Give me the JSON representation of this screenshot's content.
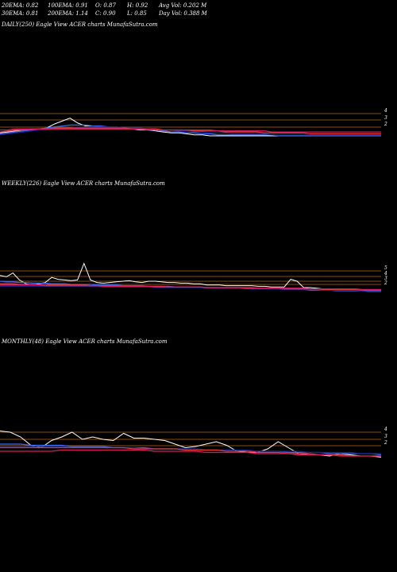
{
  "stats": {
    "row1": [
      "20EMA: 0.82",
      "100EMA: 0.91",
      "O: 0.87",
      "H: 0.92",
      "Avg Vol: 0.202  M"
    ],
    "row2": [
      "30EMA: 0.81",
      "200EMA: 1.14",
      "C: 0.90",
      "L: 0.85",
      "Day Vol: 0.388  M"
    ]
  },
  "colors": {
    "background": "#000000",
    "price": "#ffffff",
    "gridline": "#b5651d",
    "ema_blue": "#3a6cf0",
    "ema_navy": "#1a237e",
    "ema_red": "#e53935",
    "ema_magenta": "#d81b60"
  },
  "chart_data": [
    {
      "type": "line",
      "title": "DAILY(250) Eagle   View  ACER charts MunafaSutra.com",
      "y_tick_labels": [
        "4",
        "3",
        "2"
      ],
      "grid": true,
      "series": [
        {
          "color_key": "price",
          "values": [
            1.7,
            1.8,
            1.9,
            1.9,
            2.0,
            2.1,
            2.2,
            2.6,
            2.9,
            3.2,
            2.7,
            2.4,
            2.4,
            2.3,
            2.3,
            2.2,
            2.2,
            2.1,
            2.0,
            2.0,
            1.9,
            1.8,
            1.7,
            1.7,
            1.6,
            1.5,
            1.5,
            1.4,
            1.4,
            1.4,
            1.4,
            1.4,
            1.4,
            1.4,
            1.4,
            1.4,
            1.4,
            1.4,
            1.4,
            1.4,
            1.4,
            1.4,
            1.4,
            1.4,
            1.4,
            1.4,
            1.4,
            1.4,
            1.4,
            1.4
          ]
        },
        {
          "color_key": "ema_blue",
          "values": [
            1.6,
            1.7,
            1.8,
            1.9,
            2.0,
            2.1,
            2.2,
            2.3,
            2.4,
            2.5,
            2.5,
            2.5,
            2.4,
            2.4,
            2.3,
            2.3,
            2.2,
            2.2,
            2.1,
            2.0,
            2.0,
            1.9,
            1.8,
            1.8,
            1.7,
            1.7,
            1.6,
            1.6,
            1.5,
            1.5,
            1.5,
            1.5,
            1.5,
            1.5,
            1.5,
            1.5,
            1.4,
            1.4,
            1.4,
            1.4,
            1.4,
            1.4,
            1.4,
            1.4,
            1.4,
            1.4,
            1.4,
            1.4,
            1.4,
            1.4
          ]
        },
        {
          "color_key": "ema_navy",
          "values": [
            1.5,
            1.6,
            1.7,
            1.8,
            1.9,
            2.0,
            2.0,
            2.1,
            2.2,
            2.2,
            2.3,
            2.3,
            2.3,
            2.3,
            2.3,
            2.3,
            2.2,
            2.2,
            2.2,
            2.1,
            2.1,
            2.0,
            2.0,
            1.9,
            1.9,
            1.8,
            1.8,
            1.7,
            1.7,
            1.7,
            1.6,
            1.6,
            1.6,
            1.6,
            1.6,
            1.5,
            1.5,
            1.5,
            1.5,
            1.5,
            1.5,
            1.5,
            1.5,
            1.5,
            1.5,
            1.5,
            1.5,
            1.5,
            1.5,
            1.5
          ]
        },
        {
          "color_key": "ema_red",
          "values": [
            1.8,
            1.9,
            2.0,
            2.0,
            2.1,
            2.1,
            2.1,
            2.2,
            2.2,
            2.2,
            2.2,
            2.2,
            2.2,
            2.2,
            2.2,
            2.2,
            2.2,
            2.1,
            2.1,
            2.1,
            2.1,
            2.0,
            2.0,
            2.0,
            2.0,
            1.9,
            1.9,
            1.9,
            1.9,
            1.8,
            1.8,
            1.8,
            1.8,
            1.8,
            1.7,
            1.7,
            1.7,
            1.7,
            1.7,
            1.7,
            1.6,
            1.6,
            1.6,
            1.6,
            1.6,
            1.6,
            1.6,
            1.6,
            1.6,
            1.6
          ]
        },
        {
          "color_key": "ema_magenta",
          "values": [
            2.0,
            2.0,
            2.1,
            2.1,
            2.1,
            2.1,
            2.1,
            2.1,
            2.1,
            2.1,
            2.1,
            2.1,
            2.1,
            2.1,
            2.1,
            2.1,
            2.1,
            2.1,
            2.1,
            2.1,
            2.0,
            2.0,
            2.0,
            2.0,
            2.0,
            2.0,
            2.0,
            2.0,
            1.9,
            1.9,
            1.9,
            1.9,
            1.9,
            1.9,
            1.9,
            1.8,
            1.8,
            1.8,
            1.8,
            1.8,
            1.8,
            1.8,
            1.8,
            1.8,
            1.8,
            1.8,
            1.8,
            1.8,
            1.8,
            1.8
          ]
        }
      ]
    },
    {
      "type": "line",
      "title": "WEEKLY(226) Eagle   View  ACER charts MunafaSutra.com",
      "y_tick_labels": [
        "5",
        "4",
        "3",
        "2"
      ],
      "grid": true,
      "series": [
        {
          "color_key": "price",
          "values": [
            3.9,
            3.7,
            4.3,
            3.2,
            2.6,
            2.4,
            2.6,
            2.8,
            3.6,
            3.3,
            3.2,
            3.1,
            3.2,
            5.8,
            3.2,
            2.8,
            2.7,
            2.8,
            2.9,
            3.0,
            3.1,
            2.9,
            2.8,
            3.0,
            3.0,
            2.9,
            2.8,
            2.8,
            2.7,
            2.7,
            2.6,
            2.6,
            2.4,
            2.4,
            2.4,
            2.3,
            2.3,
            2.3,
            2.3,
            2.3,
            2.2,
            2.2,
            2.1,
            2.1,
            2.1,
            3.3,
            3.0,
            2.0,
            2.0,
            1.9,
            1.8,
            1.7,
            1.6,
            1.6,
            1.6,
            1.5,
            1.5,
            1.5,
            1.4,
            1.4
          ]
        },
        {
          "color_key": "ema_blue",
          "values": [
            3.0,
            2.9,
            2.9,
            2.8,
            2.8,
            2.7,
            2.7,
            2.7,
            2.6,
            2.6,
            2.6,
            2.5,
            2.5,
            2.5,
            2.5,
            2.4,
            2.4,
            2.4,
            2.4,
            2.3,
            2.3,
            2.3,
            2.3,
            2.2,
            2.2,
            2.2,
            2.2,
            2.1,
            2.1,
            2.1,
            2.1,
            2.0,
            2.0,
            2.0,
            2.0,
            1.9,
            1.9,
            1.9,
            1.9,
            1.8,
            1.8,
            1.8,
            1.8,
            1.8,
            1.7,
            1.7,
            1.7,
            1.7,
            1.6,
            1.6,
            1.6,
            1.6,
            1.5,
            1.5,
            1.5,
            1.5,
            1.5,
            1.4,
            1.4,
            1.4
          ]
        },
        {
          "color_key": "ema_navy",
          "values": [
            2.2,
            2.2,
            2.2,
            2.2,
            2.2,
            2.2,
            2.2,
            2.2,
            2.2,
            2.2,
            2.2,
            2.2,
            2.2,
            2.2,
            2.2,
            2.2,
            2.1,
            2.1,
            2.1,
            2.1,
            2.1,
            2.1,
            2.1,
            2.1,
            2.0,
            2.0,
            2.0,
            2.0,
            2.0,
            2.0,
            2.0,
            2.0,
            1.9,
            1.9,
            1.9,
            1.9,
            1.9,
            1.9,
            1.8,
            1.8,
            1.8,
            1.8,
            1.8,
            1.8,
            1.7,
            1.7,
            1.7,
            1.7,
            1.7,
            1.7,
            1.6,
            1.6,
            1.6,
            1.6,
            1.6,
            1.6,
            1.5,
            1.5,
            1.5,
            1.5
          ]
        },
        {
          "color_key": "ema_red",
          "values": [
            2.6,
            2.6,
            2.6,
            2.5,
            2.5,
            2.5,
            2.5,
            2.5,
            2.4,
            2.4,
            2.4,
            2.4,
            2.4,
            2.4,
            2.3,
            2.3,
            2.3,
            2.3,
            2.3,
            2.3,
            2.2,
            2.2,
            2.2,
            2.2,
            2.2,
            2.2,
            2.1,
            2.1,
            2.1,
            2.1,
            2.1,
            2.1,
            2.0,
            2.0,
            2.0,
            2.0,
            2.0,
            2.0,
            1.9,
            1.9,
            1.9,
            1.9,
            1.9,
            1.9,
            1.8,
            1.8,
            1.8,
            1.8,
            1.8,
            1.8,
            1.7,
            1.7,
            1.7,
            1.7,
            1.7,
            1.7,
            1.6,
            1.6,
            1.6,
            1.6
          ]
        },
        {
          "color_key": "ema_magenta",
          "values": [
            2.4,
            2.4,
            2.4,
            2.4,
            2.4,
            2.4,
            2.4,
            2.3,
            2.3,
            2.3,
            2.3,
            2.3,
            2.3,
            2.3,
            2.3,
            2.3,
            2.2,
            2.2,
            2.2,
            2.2,
            2.2,
            2.2,
            2.2,
            2.2,
            2.1,
            2.1,
            2.1,
            2.1,
            2.1,
            2.1,
            2.1,
            2.1,
            2.0,
            2.0,
            2.0,
            2.0,
            2.0,
            2.0,
            2.0,
            2.0,
            1.9,
            1.9,
            1.9,
            1.9,
            1.9,
            1.9,
            1.9,
            1.9,
            1.8,
            1.8,
            1.8,
            1.8,
            1.8,
            1.8,
            1.8,
            1.8,
            1.7,
            1.7,
            1.7,
            1.7
          ]
        }
      ]
    },
    {
      "type": "line",
      "title": "MONTHLY(48) Eagle   View  ACER charts MunafaSutra.com",
      "y_tick_labels": [
        "4",
        "3",
        "2"
      ],
      "grid": true,
      "series": [
        {
          "color_key": "price",
          "values": [
            3.7,
            3.6,
            3.2,
            2.5,
            2.3,
            2.9,
            3.2,
            3.6,
            3.0,
            3.2,
            3.0,
            2.9,
            3.5,
            3.1,
            3.1,
            3.0,
            2.9,
            2.6,
            2.3,
            2.4,
            2.6,
            2.8,
            2.5,
            2.0,
            1.9,
            1.9,
            2.2,
            2.8,
            2.3,
            1.8,
            1.7,
            1.7,
            1.6,
            1.8,
            1.7,
            1.6,
            1.6,
            1.5
          ]
        },
        {
          "color_key": "ema_blue",
          "values": [
            2.6,
            2.6,
            2.6,
            2.5,
            2.5,
            2.5,
            2.5,
            2.4,
            2.4,
            2.4,
            2.4,
            2.3,
            2.3,
            2.3,
            2.3,
            2.2,
            2.2,
            2.2,
            2.2,
            2.2,
            2.1,
            2.1,
            2.1,
            2.1,
            2.0,
            2.0,
            2.0,
            2.0,
            1.9,
            1.9,
            1.9,
            1.9,
            1.8,
            1.8,
            1.8,
            1.8,
            1.8,
            1.7
          ]
        },
        {
          "color_key": "ema_navy",
          "values": [
            2.4,
            2.4,
            2.4,
            2.4,
            2.4,
            2.4,
            2.4,
            2.3,
            2.3,
            2.3,
            2.3,
            2.3,
            2.3,
            2.3,
            2.2,
            2.2,
            2.2,
            2.2,
            2.2,
            2.2,
            2.1,
            2.1,
            2.1,
            2.1,
            2.1,
            2.0,
            2.0,
            2.0,
            2.0,
            2.0,
            1.9,
            1.9,
            1.9,
            1.9,
            1.9,
            1.8,
            1.8,
            1.8
          ]
        },
        {
          "color_key": "ema_red",
          "values": [
            2.3,
            2.3,
            2.3,
            2.3,
            2.3,
            2.3,
            2.3,
            2.3,
            2.3,
            2.3,
            2.3,
            2.3,
            2.3,
            2.2,
            2.2,
            2.2,
            2.2,
            2.2,
            2.1,
            2.1,
            2.1,
            2.1,
            2.0,
            2.0,
            2.0,
            1.9,
            1.9,
            1.9,
            1.8,
            1.8,
            1.8,
            1.7,
            1.7,
            1.7,
            1.6,
            1.6,
            1.6,
            1.6
          ]
        },
        {
          "color_key": "ema_magenta",
          "values": [
            2.0,
            2.0,
            2.0,
            2.0,
            2.0,
            2.0,
            2.1,
            2.1,
            2.1,
            2.1,
            2.1,
            2.1,
            2.1,
            2.1,
            2.1,
            2.0,
            2.0,
            2.0,
            2.0,
            2.0,
            1.9,
            1.9,
            1.9,
            1.9,
            1.9,
            1.8,
            1.8,
            1.8,
            1.8,
            1.7,
            1.7,
            1.7,
            1.7,
            1.6,
            1.6,
            1.6,
            1.6,
            1.6
          ]
        }
      ]
    }
  ]
}
